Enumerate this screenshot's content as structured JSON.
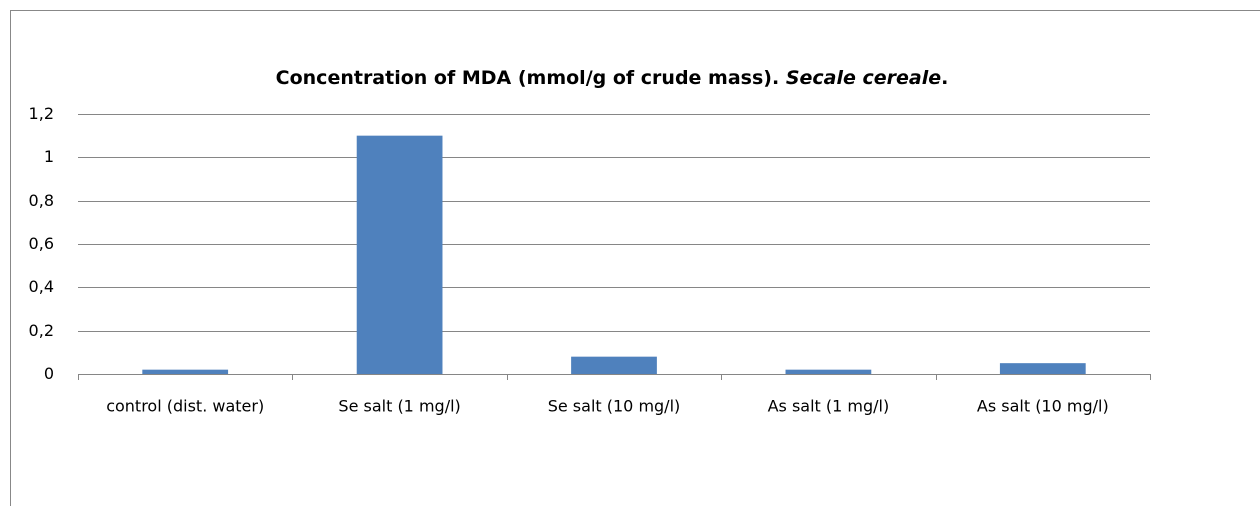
{
  "chart_data": {
    "type": "bar",
    "title": [
      "Concentration of MDA (mmol/g of crude mass). ",
      "Secale cereale",
      "."
    ],
    "categories": [
      "control (dist. water)",
      "Se salt (1 mg/l)",
      "Se salt (10 mg/l)",
      "As salt (1 mg/l)",
      "As salt (10 mg/l)"
    ],
    "values": [
      0.02,
      1.1,
      0.08,
      0.02,
      0.05
    ],
    "color": "#4f81bd",
    "ylim": [
      0,
      1.2
    ],
    "yticks": [
      0,
      {
        "value": 0.2,
        "label": "0,2"
      },
      {
        "value": 0.4,
        "label": "0,4"
      },
      {
        "value": 0.6,
        "label": "0,6"
      },
      {
        "value": 0.8,
        "label": "0,8"
      },
      1,
      {
        "value": 1.2,
        "label": "1,2"
      }
    ],
    "grid": true
  }
}
